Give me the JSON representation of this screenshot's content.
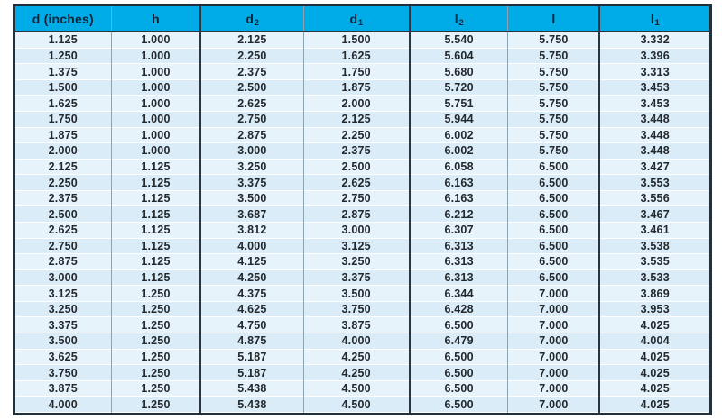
{
  "chart_data": {
    "type": "table",
    "title": "",
    "columns": [
      {
        "label": "d (inches)",
        "sub": ""
      },
      {
        "label": "h",
        "sub": ""
      },
      {
        "label": "d",
        "sub": "2"
      },
      {
        "label": "d",
        "sub": "1"
      },
      {
        "label": "l",
        "sub": "2"
      },
      {
        "label": "l",
        "sub": ""
      },
      {
        "label": "l",
        "sub": "1"
      }
    ],
    "column_widths_pct": [
      13.8,
      12.9,
      14.8,
      15.3,
      14.2,
      13.2,
      15.8
    ],
    "rows": [
      [
        "1.125",
        "1.000",
        "2.125",
        "1.500",
        "5.540",
        "5.750",
        "3.332"
      ],
      [
        "1.250",
        "1.000",
        "2.250",
        "1.625",
        "5.604",
        "5.750",
        "3.396"
      ],
      [
        "1.375",
        "1.000",
        "2.375",
        "1.750",
        "5.680",
        "5.750",
        "3.313"
      ],
      [
        "1.500",
        "1.000",
        "2.500",
        "1.875",
        "5.720",
        "5.750",
        "3.453"
      ],
      [
        "1.625",
        "1.000",
        "2.625",
        "2.000",
        "5.751",
        "5.750",
        "3.453"
      ],
      [
        "1.750",
        "1.000",
        "2.750",
        "2.125",
        "5.944",
        "5.750",
        "3.448"
      ],
      [
        "1.875",
        "1.000",
        "2.875",
        "2.250",
        "6.002",
        "5.750",
        "3.448"
      ],
      [
        "2.000",
        "1.000",
        "3.000",
        "2.375",
        "6.002",
        "5.750",
        "3.448"
      ],
      [
        "2.125",
        "1.125",
        "3.250",
        "2.500",
        "6.058",
        "6.500",
        "3.427"
      ],
      [
        "2.250",
        "1.125",
        "3.375",
        "2.625",
        "6.163",
        "6.500",
        "3.553"
      ],
      [
        "2.375",
        "1.125",
        "3.500",
        "2.750",
        "6.163",
        "6.500",
        "3.556"
      ],
      [
        "2.500",
        "1.125",
        "3.687",
        "2.875",
        "6.212",
        "6.500",
        "3.467"
      ],
      [
        "2.625",
        "1.125",
        "3.812",
        "3.000",
        "6.307",
        "6.500",
        "3.461"
      ],
      [
        "2.750",
        "1.125",
        "4.000",
        "3.125",
        "6.313",
        "6.500",
        "3.538"
      ],
      [
        "2.875",
        "1.125",
        "4.125",
        "3.250",
        "6.313",
        "6.500",
        "3.535"
      ],
      [
        "3.000",
        "1.125",
        "4.250",
        "3.375",
        "6.313",
        "6.500",
        "3.533"
      ],
      [
        "3.125",
        "1.250",
        "4.375",
        "3.500",
        "6.344",
        "7.000",
        "3.869"
      ],
      [
        "3.250",
        "1.250",
        "4.625",
        "3.750",
        "6.428",
        "7.000",
        "3.953"
      ],
      [
        "3.375",
        "1.250",
        "4.750",
        "3.875",
        "6.500",
        "7.000",
        "4.025"
      ],
      [
        "3.500",
        "1.250",
        "4.875",
        "4.000",
        "6.479",
        "7.000",
        "4.004"
      ],
      [
        "3.625",
        "1.250",
        "5.187",
        "4.250",
        "6.500",
        "7.000",
        "4.025"
      ],
      [
        "3.750",
        "1.250",
        "5.187",
        "4.250",
        "6.500",
        "7.000",
        "4.025"
      ],
      [
        "3.875",
        "1.250",
        "5.438",
        "4.500",
        "6.500",
        "7.000",
        "4.025"
      ],
      [
        "4.000",
        "1.250",
        "5.438",
        "4.500",
        "6.500",
        "7.000",
        "4.025"
      ]
    ],
    "layout": {
      "grid": "on",
      "thick_separator_after_columns": [
        1,
        3,
        5
      ],
      "thin_separator_after_columns": [
        0,
        2,
        4
      ]
    },
    "colors": {
      "header_background": "#00ace8",
      "header_text": "#10243a",
      "body_text": "#23282d",
      "row_light": "#e7f3fb",
      "row_shaded": "#d9ecf8",
      "outer_border": "#243039",
      "thin_grid_line": "#8ea3b0",
      "row_divider": "#ffffff"
    }
  }
}
